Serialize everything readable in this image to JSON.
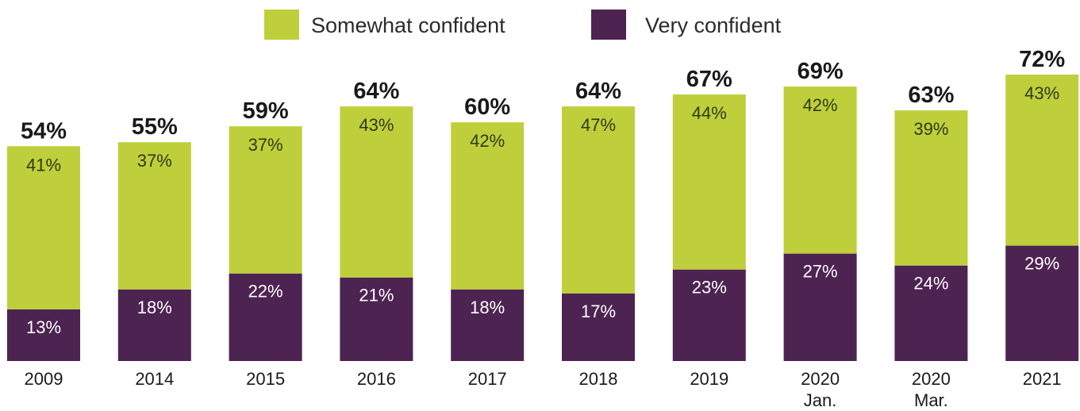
{
  "chart_data": {
    "type": "bar",
    "stacked": true,
    "categories": [
      "2009",
      "2014",
      "2015",
      "2016",
      "2017",
      "2018",
      "2019",
      "2020\nJan.",
      "2020\nMar.",
      "2021"
    ],
    "series": [
      {
        "name": "Very confident",
        "color": "#4d2351",
        "values": [
          13,
          18,
          22,
          21,
          18,
          17,
          23,
          27,
          24,
          29
        ]
      },
      {
        "name": "Somewhat confident",
        "color": "#bfcf3b",
        "values": [
          41,
          37,
          37,
          43,
          42,
          47,
          44,
          42,
          39,
          43
        ]
      }
    ],
    "totals": [
      "54%",
      "55%",
      "59%",
      "64%",
      "60%",
      "64%",
      "67%",
      "69%",
      "63%",
      "72%"
    ],
    "legend": [
      {
        "label": "Somewhat confident",
        "color": "#bfcf3b"
      },
      {
        "label": "Very confident",
        "color": "#4d2351"
      }
    ],
    "legend_position": "top-center",
    "value_suffix": "%",
    "ylim": [
      0,
      72
    ],
    "grid": false
  }
}
